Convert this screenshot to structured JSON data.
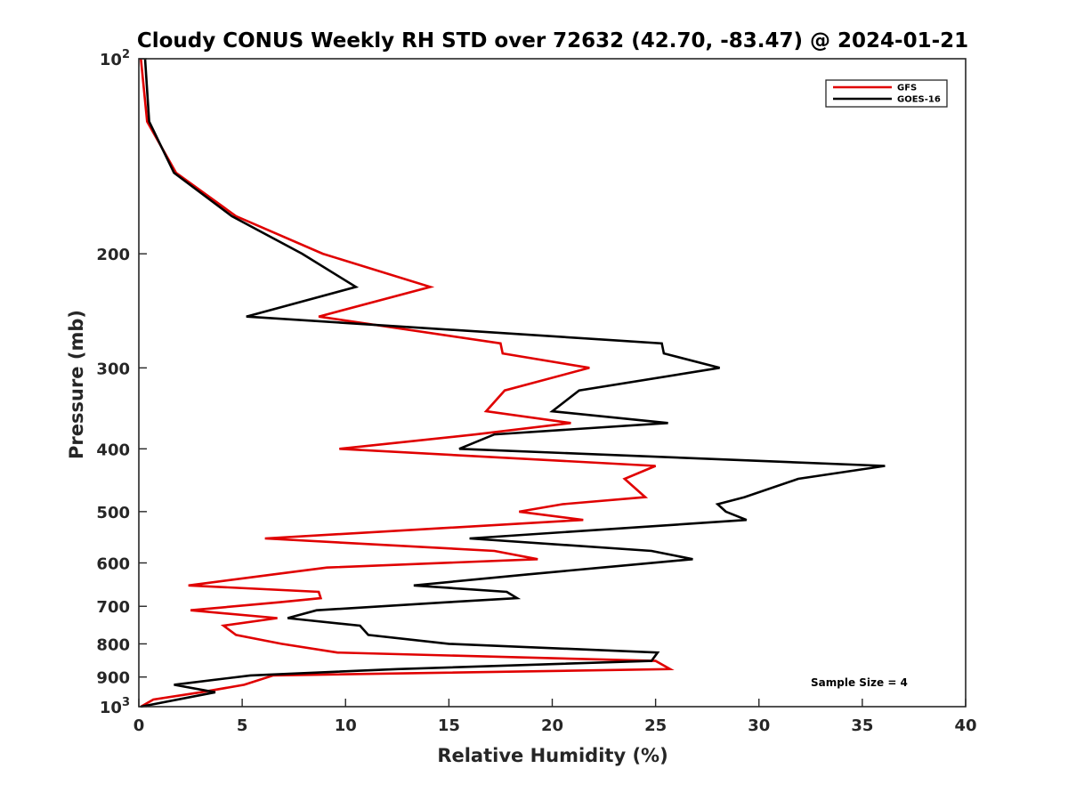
{
  "chart_data": {
    "type": "line",
    "title": "Cloudy CONUS Weekly RH STD over 72632 (42.70, -83.47) @ 2024-01-21",
    "xlabel": "Relative Humidity (%)",
    "ylabel": "Pressure (mb)",
    "xlim": [
      0,
      40
    ],
    "ylim": [
      1000,
      100
    ],
    "yscale": "log",
    "y_reversed": true,
    "xticks": [
      0,
      5,
      10,
      15,
      20,
      25,
      30,
      35,
      40
    ],
    "yticks": [
      {
        "value": 100,
        "base": "10",
        "exp": "2"
      },
      {
        "value": 200,
        "label": "200"
      },
      {
        "value": 300,
        "label": "300"
      },
      {
        "value": 400,
        "label": "400"
      },
      {
        "value": 500,
        "label": "500"
      },
      {
        "value": 600,
        "label": "600"
      },
      {
        "value": 700,
        "label": "700"
      },
      {
        "value": 800,
        "label": "800"
      },
      {
        "value": 900,
        "label": "900"
      },
      {
        "value": 1000,
        "base": "10",
        "exp": "3"
      }
    ],
    "grid": false,
    "legend_position": "top-right",
    "annotation": "Sample Size = 4",
    "series": [
      {
        "name": "GFS",
        "color": "#e00000",
        "points": [
          [
            0.1,
            100
          ],
          [
            0.4,
            125
          ],
          [
            1.8,
            150
          ],
          [
            4.7,
            175
          ],
          [
            8.9,
            200
          ],
          [
            14.1,
            225
          ],
          [
            8.7,
            250
          ],
          [
            17.5,
            275
          ],
          [
            17.6,
            285
          ],
          [
            21.8,
            300
          ],
          [
            17.7,
            325
          ],
          [
            16.8,
            350
          ],
          [
            20.9,
            365
          ],
          [
            16.3,
            380
          ],
          [
            9.7,
            400
          ],
          [
            25.0,
            425
          ],
          [
            23.5,
            445
          ],
          [
            24.5,
            475
          ],
          [
            20.5,
            487
          ],
          [
            18.4,
            500
          ],
          [
            21.5,
            515
          ],
          [
            6.1,
            550
          ],
          [
            17.2,
            575
          ],
          [
            19.3,
            592
          ],
          [
            9.1,
            610
          ],
          [
            6.5,
            625
          ],
          [
            2.4,
            650
          ],
          [
            8.7,
            665
          ],
          [
            8.8,
            680
          ],
          [
            6.8,
            690
          ],
          [
            2.5,
            710
          ],
          [
            6.7,
            730
          ],
          [
            4.1,
            750
          ],
          [
            4.7,
            775
          ],
          [
            6.9,
            800
          ],
          [
            9.6,
            825
          ],
          [
            25.0,
            850
          ],
          [
            25.7,
            875
          ],
          [
            6.5,
            895
          ],
          [
            5.1,
            925
          ],
          [
            3.0,
            950
          ],
          [
            0.7,
            975
          ],
          [
            0.1,
            1000
          ]
        ]
      },
      {
        "name": "GOES-16",
        "color": "#000000",
        "points": [
          [
            0.3,
            100
          ],
          [
            0.5,
            125
          ],
          [
            1.7,
            150
          ],
          [
            4.5,
            175
          ],
          [
            7.9,
            200
          ],
          [
            10.5,
            225
          ],
          [
            5.2,
            250
          ],
          [
            25.3,
            275
          ],
          [
            25.4,
            285
          ],
          [
            28.1,
            300
          ],
          [
            21.3,
            325
          ],
          [
            20.0,
            350
          ],
          [
            25.6,
            365
          ],
          [
            17.2,
            380
          ],
          [
            15.5,
            400
          ],
          [
            36.1,
            425
          ],
          [
            31.9,
            445
          ],
          [
            29.3,
            475
          ],
          [
            28.0,
            487
          ],
          [
            28.4,
            500
          ],
          [
            29.4,
            515
          ],
          [
            16.0,
            550
          ],
          [
            24.8,
            575
          ],
          [
            26.8,
            592
          ],
          [
            22.4,
            610
          ],
          [
            18.8,
            625
          ],
          [
            13.3,
            650
          ],
          [
            17.8,
            665
          ],
          [
            18.3,
            680
          ],
          [
            14.9,
            690
          ],
          [
            8.6,
            710
          ],
          [
            7.2,
            730
          ],
          [
            10.7,
            750
          ],
          [
            11.1,
            775
          ],
          [
            15.0,
            800
          ],
          [
            25.1,
            825
          ],
          [
            24.8,
            850
          ],
          [
            12.5,
            875
          ],
          [
            5.4,
            895
          ],
          [
            1.7,
            925
          ],
          [
            3.7,
            950
          ],
          [
            0.1,
            1000
          ]
        ]
      }
    ]
  }
}
